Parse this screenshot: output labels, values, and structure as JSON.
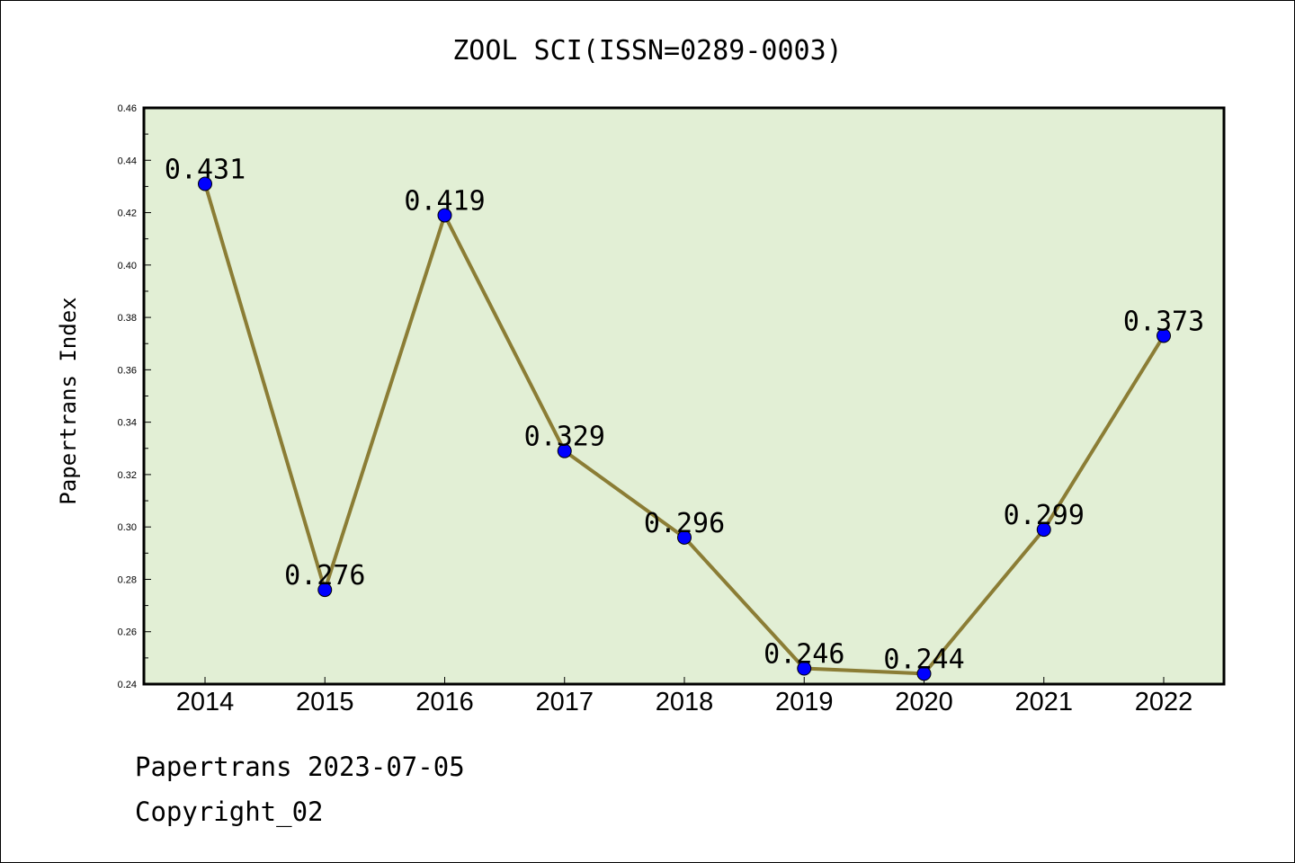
{
  "chart_data": {
    "type": "line",
    "title": "ZOOL SCI(ISSN=0289-0003)",
    "ylabel": "Papertrans Index",
    "xlabel": "",
    "categories": [
      "2014",
      "2015",
      "2016",
      "2017",
      "2018",
      "2019",
      "2020",
      "2021",
      "2022"
    ],
    "values": [
      0.431,
      0.276,
      0.419,
      0.329,
      0.296,
      0.246,
      0.244,
      0.299,
      0.373
    ],
    "data_labels": [
      "0.431",
      "0.276",
      "0.419",
      "0.329",
      "0.296",
      "0.246",
      "0.244",
      "0.299",
      "0.373"
    ],
    "ylim": [
      0.24,
      0.46
    ],
    "yticks": [
      "0.24",
      "0.26",
      "0.28",
      "0.30",
      "0.32",
      "0.34",
      "0.36",
      "0.38",
      "0.40",
      "0.42",
      "0.44",
      "0.46"
    ],
    "grid": false,
    "colors": {
      "plot_background": "#e2efd5",
      "line": "#8b7d35",
      "marker": "#0000ff"
    }
  },
  "footer": {
    "line1": "Papertrans 2023-07-05",
    "line2": "Copyright_02"
  }
}
